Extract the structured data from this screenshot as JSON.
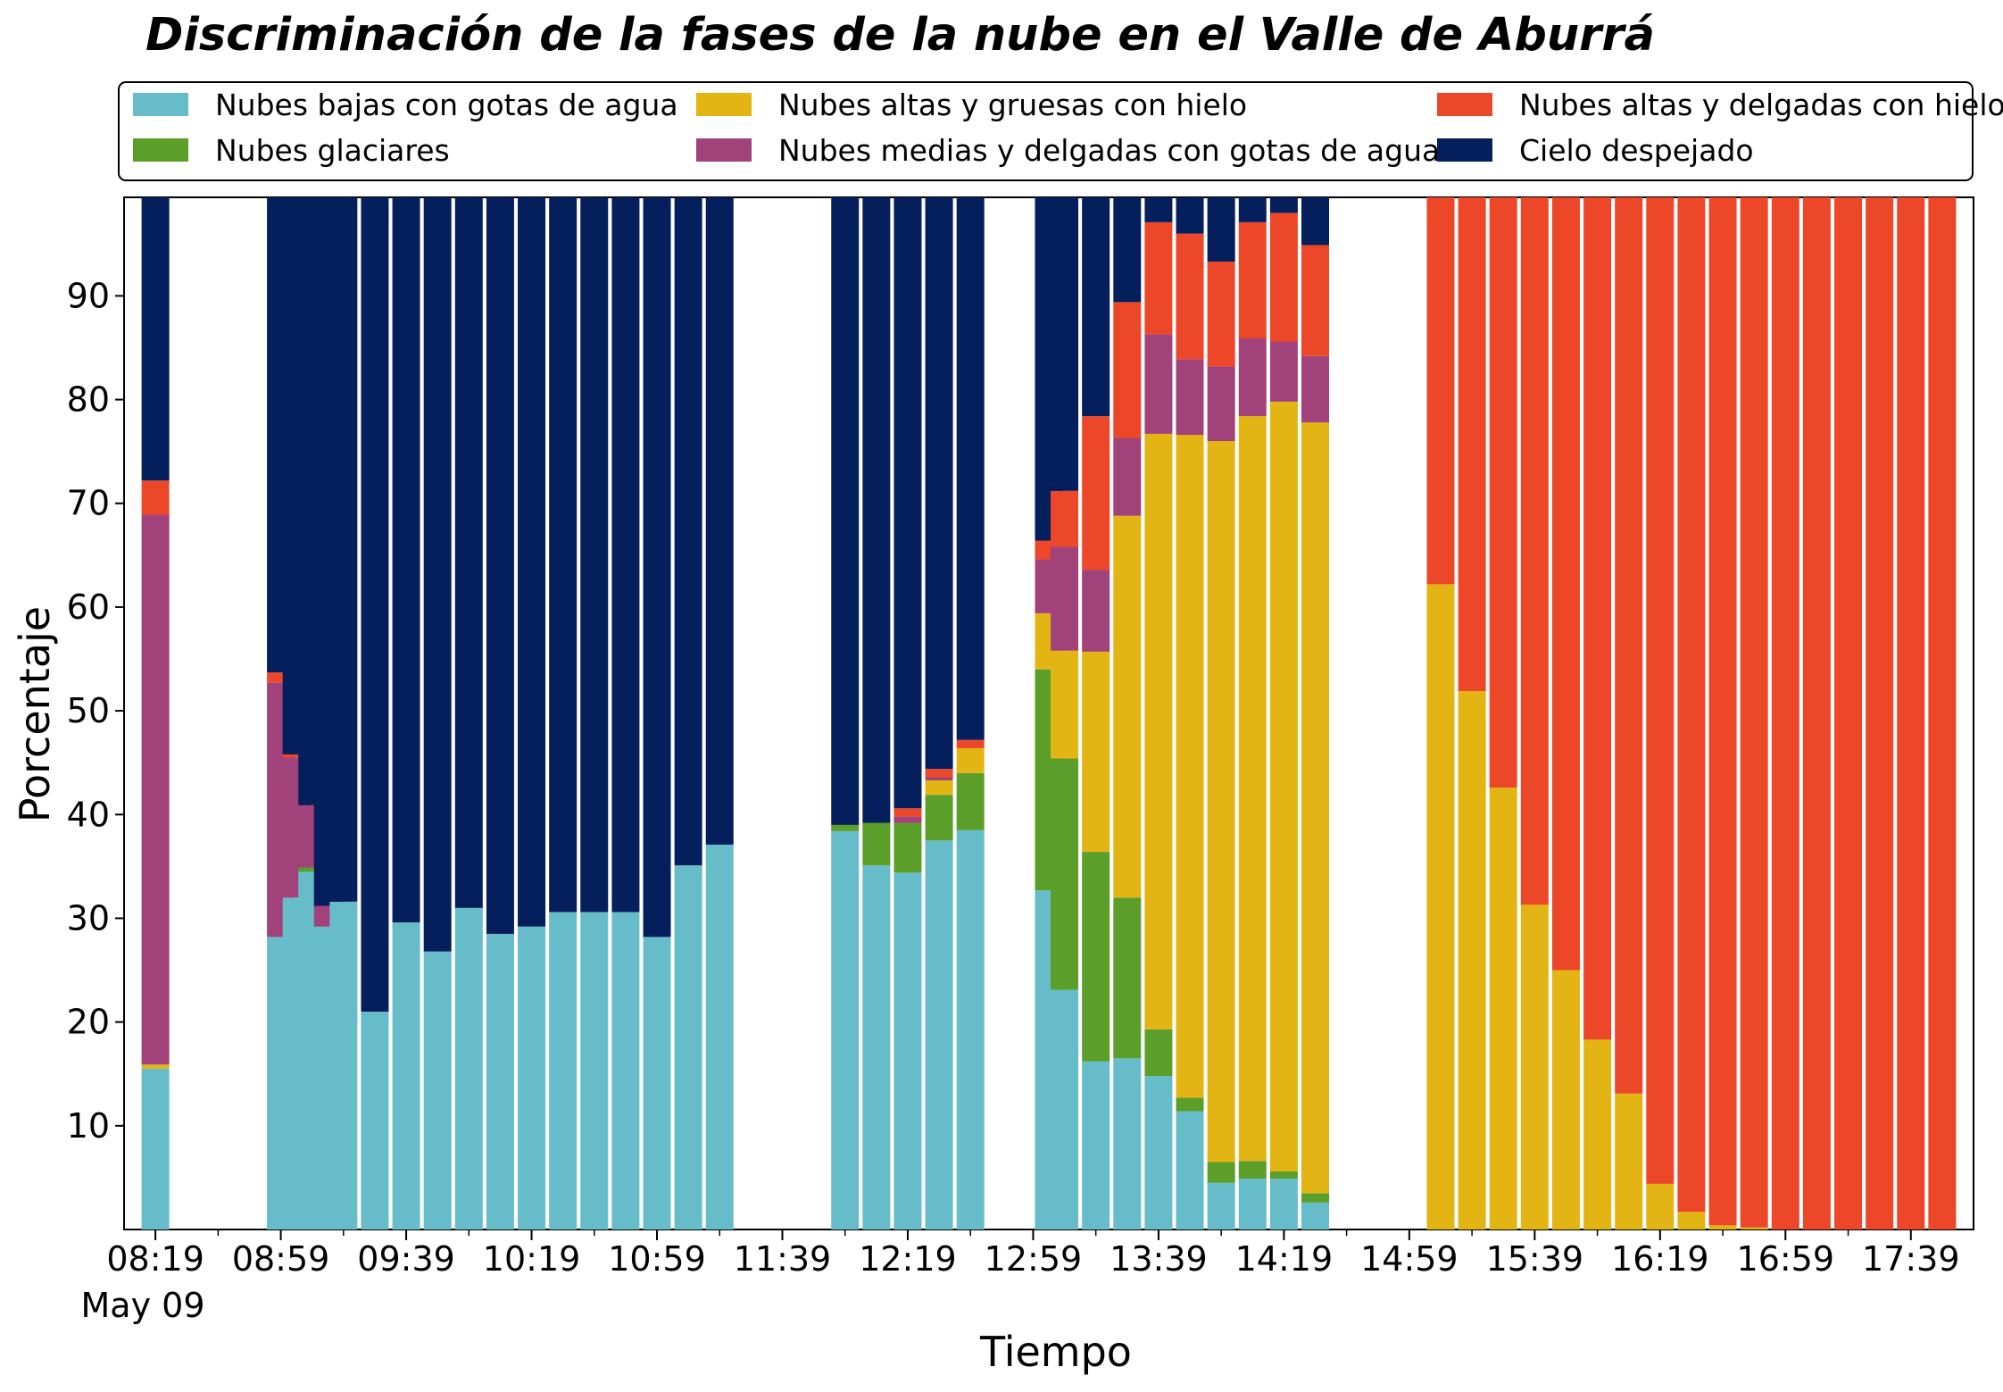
{
  "chart_data": {
    "type": "bar",
    "stacked": true,
    "title": "Discriminación de la fases de la nube en el Valle de Aburrá",
    "xlabel": "Tiempo",
    "ylabel": "Porcentaje",
    "ylim": [
      0,
      100
    ],
    "yticks": [
      10,
      20,
      30,
      40,
      50,
      60,
      70,
      80,
      90
    ],
    "xticks": [
      "08:19",
      "08:59",
      "09:39",
      "10:19",
      "10:59",
      "11:39",
      "12:19",
      "12:59",
      "13:39",
      "14:19",
      "14:59",
      "15:39",
      "16:19",
      "16:59",
      "17:39"
    ],
    "x_date_label": "May 09",
    "legend_position": "top",
    "grid": false,
    "series": [
      {
        "name": "Nubes bajas con gotas de agua",
        "color": "#66bcc8"
      },
      {
        "name": "Nubes glaciares",
        "color": "#5c9e2a"
      },
      {
        "name": "Nubes altas y gruesas con hielo",
        "color": "#e3b514"
      },
      {
        "name": "Nubes medias y delgadas con gotas de agua",
        "color": "#a2427a"
      },
      {
        "name": "Nubes altas y delgadas con hielo",
        "color": "#ed472a"
      },
      {
        "name": "Cielo despejado",
        "color": "#041f5c"
      }
    ],
    "bars": [
      {
        "x": "08:19",
        "values": [
          15.5,
          0,
          0.4,
          53,
          3.3,
          27.8
        ]
      },
      {
        "x": "08:59",
        "values": [
          28.2,
          0,
          0,
          24.5,
          1,
          46.3
        ]
      },
      {
        "x": "09:04",
        "values": [
          32,
          0,
          0,
          13.5,
          0.3,
          54.2
        ]
      },
      {
        "x": "09:09",
        "values": [
          34.5,
          0.4,
          0,
          6,
          0,
          59.1
        ]
      },
      {
        "x": "09:14",
        "values": [
          29.2,
          0,
          0,
          2,
          0,
          68.8
        ]
      },
      {
        "x": "09:19",
        "values": [
          31.6,
          0,
          0,
          0,
          0,
          68.4
        ]
      },
      {
        "x": "09:29",
        "values": [
          21,
          0,
          0,
          0,
          0,
          79
        ]
      },
      {
        "x": "09:39",
        "values": [
          29.6,
          0,
          0,
          0,
          0,
          70.4
        ]
      },
      {
        "x": "09:49",
        "values": [
          26.8,
          0,
          0,
          0,
          0,
          73.2
        ]
      },
      {
        "x": "09:59",
        "values": [
          31,
          0,
          0,
          0,
          0,
          69
        ]
      },
      {
        "x": "10:09",
        "values": [
          28.5,
          0,
          0,
          0,
          0,
          71.5
        ]
      },
      {
        "x": "10:19",
        "values": [
          29.2,
          0,
          0,
          0,
          0,
          70.8
        ]
      },
      {
        "x": "10:29",
        "values": [
          30.6,
          0,
          0,
          0,
          0,
          69.4
        ]
      },
      {
        "x": "10:39",
        "values": [
          30.6,
          0,
          0,
          0,
          0,
          69.4
        ]
      },
      {
        "x": "10:49",
        "values": [
          30.6,
          0,
          0,
          0,
          0,
          69.4
        ]
      },
      {
        "x": "10:59",
        "values": [
          28.2,
          0,
          0,
          0,
          0,
          71.8
        ]
      },
      {
        "x": "11:09",
        "values": [
          35.1,
          0,
          0,
          0,
          0,
          64.9
        ]
      },
      {
        "x": "11:19",
        "values": [
          37.1,
          0,
          0,
          0,
          0,
          62.9
        ]
      },
      {
        "x": "11:59",
        "values": [
          38.4,
          0.6,
          0,
          0,
          0,
          61
        ]
      },
      {
        "x": "12:09",
        "values": [
          35.1,
          4.1,
          0,
          0,
          0,
          60.8
        ]
      },
      {
        "x": "12:19",
        "values": [
          34.4,
          4.8,
          0,
          0.6,
          0.8,
          59.4
        ]
      },
      {
        "x": "12:29",
        "values": [
          37.5,
          4.4,
          1.4,
          0.3,
          0.8,
          55.6
        ]
      },
      {
        "x": "12:39",
        "values": [
          38.5,
          5.5,
          2.4,
          0,
          0.8,
          52.8
        ]
      },
      {
        "x": "13:04",
        "values": [
          32.7,
          21.3,
          5.4,
          5.2,
          1.8,
          33.6
        ]
      },
      {
        "x": "13:09",
        "values": [
          23.1,
          22.3,
          10.4,
          10,
          5.4,
          28.8
        ]
      },
      {
        "x": "13:19",
        "values": [
          16.2,
          20.2,
          19.3,
          7.9,
          14.8,
          21.6
        ]
      },
      {
        "x": "13:29",
        "values": [
          16.5,
          15.5,
          36.8,
          7.5,
          13.1,
          10.6
        ]
      },
      {
        "x": "13:39",
        "values": [
          14.8,
          4.5,
          57.4,
          9.6,
          10.8,
          2.9
        ]
      },
      {
        "x": "13:49",
        "values": [
          11.4,
          1.3,
          63.9,
          7.3,
          12.1,
          4
        ]
      },
      {
        "x": "13:59",
        "values": [
          4.5,
          2,
          69.5,
          7.2,
          10.1,
          6.7
        ]
      },
      {
        "x": "14:09",
        "values": [
          4.9,
          1.7,
          71.8,
          7.5,
          11.2,
          2.9
        ]
      },
      {
        "x": "14:19",
        "values": [
          4.9,
          0.7,
          74.2,
          5.8,
          12.4,
          2
        ]
      },
      {
        "x": "14:29",
        "values": [
          2.6,
          0.9,
          74.3,
          6.4,
          10.7,
          5.1
        ]
      },
      {
        "x": "15:09",
        "values": [
          0,
          0,
          62.2,
          0,
          37.8,
          0
        ]
      },
      {
        "x": "15:19",
        "values": [
          0,
          0,
          51.9,
          0,
          48.1,
          0
        ]
      },
      {
        "x": "15:29",
        "values": [
          0,
          0,
          42.6,
          0,
          57.4,
          0
        ]
      },
      {
        "x": "15:39",
        "values": [
          0,
          0,
          31.3,
          0,
          68.7,
          0
        ]
      },
      {
        "x": "15:49",
        "values": [
          0,
          0,
          25,
          0,
          75,
          0
        ]
      },
      {
        "x": "15:59",
        "values": [
          0,
          0,
          18.3,
          0,
          81.7,
          0
        ]
      },
      {
        "x": "16:09",
        "values": [
          0,
          0,
          13.1,
          0,
          86.9,
          0
        ]
      },
      {
        "x": "16:19",
        "values": [
          0,
          0,
          4.4,
          0,
          95.6,
          0
        ]
      },
      {
        "x": "16:29",
        "values": [
          0,
          0,
          1.7,
          0,
          98.3,
          0
        ]
      },
      {
        "x": "16:39",
        "values": [
          0,
          0,
          0.4,
          0,
          99.6,
          0
        ]
      },
      {
        "x": "16:49",
        "values": [
          0,
          0,
          0.2,
          0,
          99.8,
          0
        ]
      },
      {
        "x": "16:59",
        "values": [
          0,
          0,
          0,
          0,
          100,
          0
        ]
      },
      {
        "x": "17:09",
        "values": [
          0,
          0,
          0,
          0,
          100,
          0
        ]
      },
      {
        "x": "17:19",
        "values": [
          0,
          0,
          0,
          0,
          100,
          0
        ]
      },
      {
        "x": "17:29",
        "values": [
          0,
          0,
          0,
          0,
          100,
          0
        ]
      },
      {
        "x": "17:39",
        "values": [
          0,
          0,
          0,
          0,
          100,
          0
        ]
      },
      {
        "x": "17:49",
        "values": [
          0,
          0,
          0,
          0,
          99.7,
          0.3
        ]
      }
    ]
  }
}
